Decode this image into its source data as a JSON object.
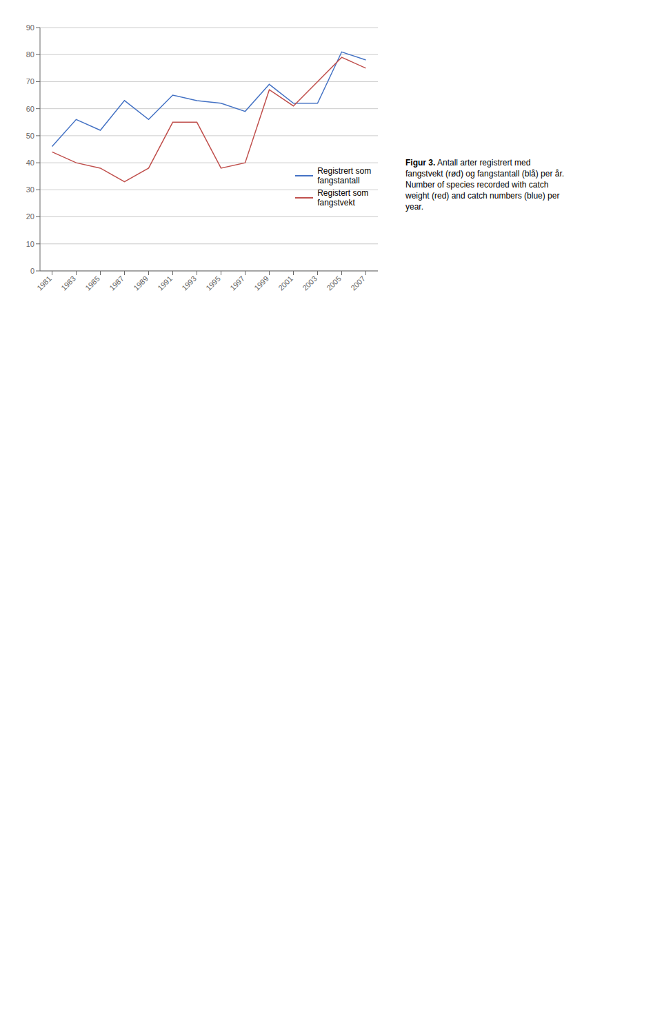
{
  "chart_data": {
    "type": "line",
    "title": "Figur 3.",
    "subtitle": " Antall arter registrert med\nfangstvekt (rød) og fangstantall (blå) per år.\nNumber of species recorded with catch\nweight (red) and catch numbers (blue) per\nyear.",
    "x": [
      1981,
      1983,
      1985,
      1987,
      1989,
      1991,
      1993,
      1995,
      1997,
      1999,
      2001,
      2003,
      2005,
      2007
    ],
    "series": [
      {
        "name": "Registrert som\nfangstantall",
        "color": "#4472c4",
        "values": [
          46,
          56,
          52,
          63,
          56,
          65,
          63,
          62,
          59,
          69,
          62,
          62,
          81,
          78
        ]
      },
      {
        "name": "Registert som\nfangstvekt",
        "color": "#c0504d",
        "values": [
          44,
          40,
          38,
          33,
          38,
          55,
          55,
          38,
          40,
          67,
          61,
          70,
          79,
          75
        ]
      }
    ],
    "xlim": [
      1980,
      2008
    ],
    "xticks": [
      1981,
      1983,
      1985,
      1987,
      1989,
      1991,
      1993,
      1995,
      1997,
      1999,
      2001,
      2003,
      2005,
      2007
    ],
    "ylim": [
      0,
      90
    ],
    "yticks": [
      0,
      10,
      20,
      30,
      40,
      50,
      60,
      70,
      80,
      90
    ],
    "grid": true,
    "legend": "lower right"
  }
}
